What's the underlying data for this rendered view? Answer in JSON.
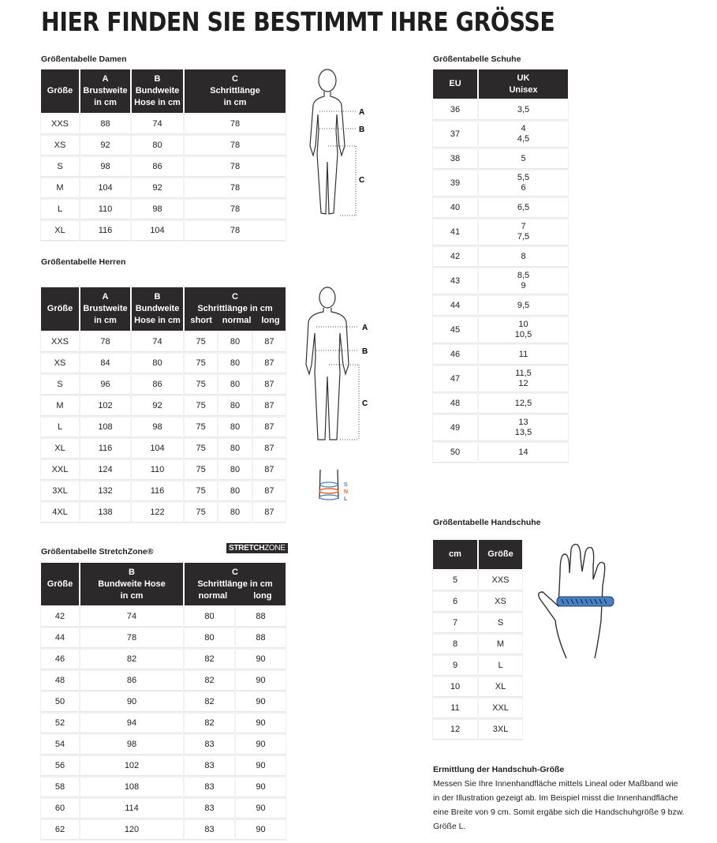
{
  "title": "HIER FINDEN SIE BESTIMMT IHRE GRÖSSE",
  "damen": {
    "title": "Größentabelle Damen",
    "headers": [
      [
        "Größe"
      ],
      [
        "A",
        "Brustweite",
        "in cm"
      ],
      [
        "B",
        "Bundweite",
        "Hose in cm"
      ],
      [
        "C",
        "Schrittlänge",
        "in cm"
      ]
    ],
    "rows": [
      [
        "XXS",
        "88",
        "74",
        "78"
      ],
      [
        "XS",
        "92",
        "80",
        "78"
      ],
      [
        "S",
        "98",
        "86",
        "78"
      ],
      [
        "M",
        "104",
        "92",
        "78"
      ],
      [
        "L",
        "110",
        "98",
        "78"
      ],
      [
        "XL",
        "116",
        "104",
        "78"
      ]
    ]
  },
  "herren": {
    "title": "Größentabelle Herren",
    "headers": [
      [
        "Größe"
      ],
      [
        "A",
        "Brustweite",
        "in cm"
      ],
      [
        "B",
        "Bundweite",
        "Hose in cm"
      ],
      [
        "C",
        "Schrittlänge in cm"
      ]
    ],
    "subheaders": [
      "short",
      "normal",
      "long"
    ],
    "rows": [
      [
        "XXS",
        "78",
        "74",
        "75",
        "80",
        "87"
      ],
      [
        "XS",
        "84",
        "80",
        "75",
        "80",
        "87"
      ],
      [
        "S",
        "96",
        "86",
        "75",
        "80",
        "87"
      ],
      [
        "M",
        "102",
        "92",
        "75",
        "80",
        "87"
      ],
      [
        "L",
        "108",
        "98",
        "75",
        "80",
        "87"
      ],
      [
        "XL",
        "116",
        "104",
        "75",
        "80",
        "87"
      ],
      [
        "XXL",
        "124",
        "110",
        "75",
        "80",
        "87"
      ],
      [
        "3XL",
        "132",
        "116",
        "75",
        "80",
        "87"
      ],
      [
        "4XL",
        "138",
        "122",
        "75",
        "80",
        "87"
      ]
    ]
  },
  "stretch": {
    "title": "Größentabelle StretchZone®",
    "logo_bold": "STRETCH",
    "logo_light": "ZONE",
    "headers": [
      [
        "Größe"
      ],
      [
        "B",
        "Bundweite Hose",
        "in cm"
      ],
      [
        "C",
        "Schrittlänge in cm"
      ]
    ],
    "subheaders": [
      "normal",
      "long"
    ],
    "rows": [
      [
        "42",
        "74",
        "80",
        "88"
      ],
      [
        "44",
        "78",
        "80",
        "88"
      ],
      [
        "46",
        "82",
        "82",
        "90"
      ],
      [
        "48",
        "86",
        "82",
        "90"
      ],
      [
        "50",
        "90",
        "82",
        "90"
      ],
      [
        "52",
        "94",
        "82",
        "90"
      ],
      [
        "54",
        "98",
        "83",
        "90"
      ],
      [
        "56",
        "102",
        "83",
        "90"
      ],
      [
        "58",
        "108",
        "83",
        "90"
      ],
      [
        "60",
        "114",
        "83",
        "90"
      ],
      [
        "62",
        "120",
        "83",
        "90"
      ]
    ]
  },
  "schuhe": {
    "title": "Größentabelle Schuhe",
    "headers": [
      [
        "EU"
      ],
      [
        "UK",
        "Unisex"
      ]
    ],
    "rows": [
      [
        "36",
        "3,5"
      ],
      [
        "37",
        "4\n4,5"
      ],
      [
        "38",
        "5"
      ],
      [
        "39",
        "5,5\n6"
      ],
      [
        "40",
        "6,5"
      ],
      [
        "41",
        "7\n7,5"
      ],
      [
        "42",
        "8"
      ],
      [
        "43",
        "8,5\n9"
      ],
      [
        "44",
        "9,5"
      ],
      [
        "45",
        "10\n10,5"
      ],
      [
        "46",
        "11"
      ],
      [
        "47",
        "11,5\n12"
      ],
      [
        "48",
        "12,5"
      ],
      [
        "49",
        "13\n13,5"
      ],
      [
        "50",
        "14"
      ]
    ]
  },
  "handschuhe": {
    "title": "Größentabelle Handschuhe",
    "headers": [
      [
        "cm"
      ],
      [
        "Größe"
      ]
    ],
    "rows": [
      [
        "5",
        "XXS"
      ],
      [
        "6",
        "XS"
      ],
      [
        "7",
        "S"
      ],
      [
        "8",
        "M"
      ],
      [
        "9",
        "L"
      ],
      [
        "10",
        "XL"
      ],
      [
        "11",
        "XXL"
      ],
      [
        "12",
        "3XL"
      ]
    ]
  },
  "figure_labels": {
    "a": "A",
    "b": "B",
    "c": "C",
    "s": "S",
    "n": "N",
    "l": "L"
  },
  "glove_info": {
    "title": "Ermittlung der Handschuh-Größe",
    "text": "Messen Sie Ihre Innenhandfläche mittels Lineal oder Maßband wie in der Illustration gezeigt ab. Im Beispiel misst die Innenhandfläche eine Breite von 9 cm. Somit ergäbe sich die Handschuhgröße 9 bzw. Größe L."
  },
  "colors": {
    "header_bg": "#2b2929",
    "tape_blue": "#4a7fc1",
    "orange": "#e8692a"
  }
}
